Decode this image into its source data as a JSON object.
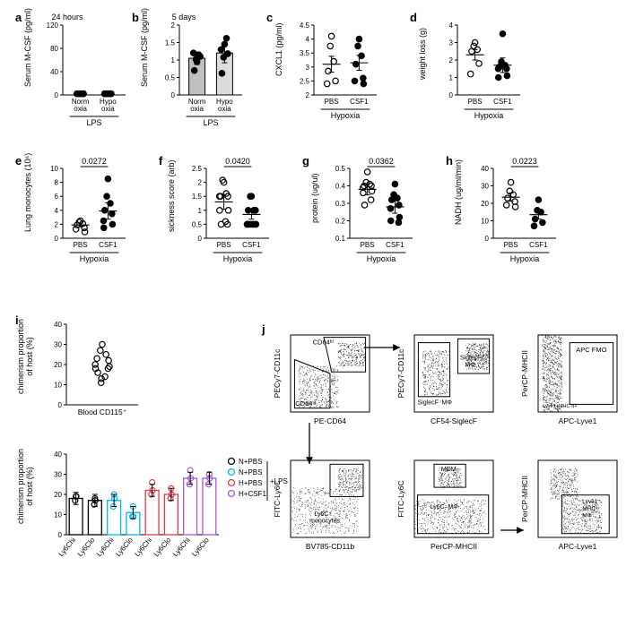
{
  "colors": {
    "black": "#000000",
    "white": "#ffffff",
    "gray_bar1": "#bfbfbf",
    "gray_bar2": "#dcdcdc",
    "cyan": "#00b8e6",
    "red": "#e63946",
    "purple": "#a259d9"
  },
  "a": {
    "label": "a",
    "title": "24 hours",
    "ylabel": "Serum M-CSF (pg/ml)",
    "x1": "Norm\noxia",
    "x2": "Hypo\noxia",
    "group": "LPS",
    "values1": [
      2,
      2,
      2,
      2,
      2,
      2
    ],
    "values2": [
      2,
      2,
      2,
      2,
      2,
      2
    ],
    "ylim": [
      0,
      120
    ],
    "yticks": [
      0,
      40,
      80,
      120
    ]
  },
  "b": {
    "label": "b",
    "title": "5 days",
    "ylabel": "Serum M-CSF (pg/ml)",
    "x1": "Norm\noxia",
    "x2": "Hypo\noxia",
    "group": "LPS",
    "bar1": 1.05,
    "bar2": 1.2,
    "pts1": [
      0.95,
      1.02,
      1.15,
      0.7,
      1.1,
      1.2
    ],
    "pts2": [
      1.45,
      1.08,
      1.62,
      0.62,
      1.18,
      1.3
    ],
    "ylim": [
      0,
      2.0
    ],
    "yticks": [
      0,
      0.5,
      1.0,
      1.5,
      2.0
    ]
  },
  "c": {
    "label": "c",
    "ylabel": "CXCL1 (pg/ml)",
    "x1": "PBS",
    "x2": "CSF1",
    "group": "Hypoxia",
    "pts1": [
      4.1,
      3.75,
      3.2,
      2.85,
      2.5,
      2.4
    ],
    "pts2": [
      4.0,
      3.75,
      3.4,
      3.1,
      2.6,
      2.5,
      2.4
    ],
    "mean1": 3.1,
    "mean2": 3.15,
    "ylim": [
      2.0,
      4.5
    ],
    "yticks": [
      2.0,
      2.5,
      3.0,
      3.5,
      4.0,
      4.5
    ]
  },
  "d": {
    "label": "d",
    "ylabel": "weight loss (g)",
    "x1": "PBS",
    "x2": "CSF1",
    "group": "Hypoxia",
    "pts1": [
      3.0,
      2.8,
      2.6,
      2.5,
      1.8,
      1.2
    ],
    "pts2": [
      3.5,
      1.9,
      1.7,
      1.6,
      1.5,
      1.5,
      1.1,
      1.0
    ],
    "mean1": 2.3,
    "mean2": 1.7,
    "ylim": [
      0,
      4
    ],
    "yticks": [
      0,
      1,
      2,
      3,
      4
    ]
  },
  "e": {
    "label": "e",
    "ylabel": "Lung monocytes (10⁶)",
    "p": "0.0272",
    "x1": "PBS",
    "x2": "CSF1",
    "group": "Hypoxia",
    "pts1": [
      2.5,
      2.3,
      2.1,
      1.9,
      1.5,
      1.3,
      0.9
    ],
    "pts2": [
      8.5,
      6.0,
      5.0,
      4.0,
      3.5,
      2.5,
      2.0,
      1.5
    ],
    "mean1": 1.9,
    "mean2": 3.9,
    "ylim": [
      0,
      10
    ],
    "yticks": [
      0,
      2,
      4,
      6,
      8,
      10
    ]
  },
  "f": {
    "label": "f",
    "ylabel": "sickness score (arb)",
    "p": "0.0420",
    "x1": "PBS",
    "x2": "CSF1",
    "group": "Hypoxia",
    "pts1": [
      2.0,
      2.08,
      1.6,
      1.5,
      1.5,
      1.5,
      1.0,
      1.0,
      0.5,
      0.5,
      0.6
    ],
    "pts2": [
      1.5,
      1.5,
      1.0,
      1.0,
      1.0,
      0.5,
      0.5,
      0.5,
      0.5,
      0.5,
      0.5,
      0.5
    ],
    "mean1": 1.3,
    "mean2": 0.85,
    "ylim": [
      0,
      2.5
    ],
    "yticks": [
      0,
      0.5,
      1.0,
      1.5,
      2.0,
      2.5
    ]
  },
  "g": {
    "label": "g",
    "ylabel": "protein (ug/ul)",
    "p": "0.0362",
    "x1": "PBS",
    "x2": "CSF1",
    "group": "Hypoxia",
    "pts1": [
      0.48,
      0.42,
      0.41,
      0.4,
      0.4,
      0.39,
      0.37,
      0.36,
      0.32,
      0.29
    ],
    "pts2": [
      0.41,
      0.35,
      0.33,
      0.32,
      0.29,
      0.27,
      0.22,
      0.2,
      0.19
    ],
    "mean1": 0.38,
    "mean2": 0.28,
    "ylim": [
      0.1,
      0.5
    ],
    "yticks": [
      0.1,
      0.2,
      0.3,
      0.4,
      0.5
    ]
  },
  "h": {
    "label": "h",
    "ylabel": "NADH (ug/ml/min)",
    "p": "0.0223",
    "x1": "PBS",
    "x2": "CSF1",
    "group": "Hypoxia",
    "pts1": [
      32,
      27,
      25,
      23,
      21,
      19,
      18
    ],
    "pts2": [
      22,
      16,
      15,
      11,
      9,
      7
    ],
    "mean1": 23.5,
    "mean2": 13.5,
    "ylim": [
      0,
      40
    ],
    "yticks": [
      0,
      10,
      20,
      30,
      40
    ]
  },
  "i": {
    "label": "i",
    "top": {
      "ylabel": "chimerism proportion\nof host (%)",
      "xlabel": "Blood CD115⁺",
      "pts": [
        30,
        27,
        25,
        23,
        22,
        20,
        19,
        18,
        18,
        16,
        14,
        13,
        11
      ],
      "ylim": [
        0,
        40
      ],
      "yticks": [
        0,
        10,
        20,
        30,
        40
      ]
    },
    "bottom": {
      "ylabel": "chimerism proportion\nof host (%)",
      "groups": [
        "Ly6Chi",
        "Ly6Clo",
        "Ly6Chi",
        "Ly6Clo",
        "Ly6Chi",
        "Ly6Clo",
        "Ly6Chi",
        "Ly6Clo"
      ],
      "bars": [
        18,
        17,
        17,
        11,
        22,
        20,
        28,
        28
      ],
      "pts": [
        [
          19,
          19,
          17
        ],
        [
          18,
          17,
          15
        ],
        [
          20,
          18,
          14
        ],
        [
          14,
          9,
          9
        ],
        [
          26,
          22,
          20
        ],
        [
          23,
          20,
          18
        ],
        [
          32,
          28,
          25
        ],
        [
          30,
          28,
          25
        ]
      ],
      "colors": [
        "black",
        "black",
        "cyan",
        "cyan",
        "red",
        "red",
        "purple",
        "purple"
      ],
      "ylim": [
        0,
        40
      ],
      "yticks": [
        0,
        10,
        20,
        30,
        40
      ],
      "legend": [
        {
          "color": "black",
          "label": "N+PBS"
        },
        {
          "color": "cyan",
          "label": "N+PBS"
        },
        {
          "color": "red",
          "label": "H+PBS"
        },
        {
          "color": "purple",
          "label": "H+CSF1"
        }
      ],
      "legend_anno": "+LPS"
    }
  },
  "j": {
    "label": "j",
    "plots": [
      {
        "x": "PE-CD64",
        "y": "PECy7-CD11c",
        "gates": [
          "CD64ʰⁱ",
          "CD64ˡᵒ"
        ],
        "arrow": true
      },
      {
        "x": "CF54-SiglecF",
        "y": "PECy7-CD11c",
        "gates": [
          "SiglecF⁻MΦ",
          "SiglecF⁺\nMΦ"
        ]
      },
      {
        "x": "APC-Lyve1",
        "y": "PerCP-MHCII",
        "gates": [
          "APC FMO"
        ],
        "anno": "Lyve1+MHC-II+"
      },
      {
        "x": "BV785-CD11b",
        "y": "FITC-Ly6C",
        "gates": [
          "Ly6C⁺\nmonocytes"
        ]
      },
      {
        "x": "PerCP-MHCII",
        "y": "FITC-Ly6C",
        "gates": [
          "MDM",
          "Ly6C⁻MΦ"
        ],
        "arrow": true
      },
      {
        "x": "APC-Lyve1",
        "y": "PerCP-MHCII",
        "gates": [
          "Lyve1⁺\nMHCˡᵒ\nMΦ"
        ]
      }
    ]
  }
}
